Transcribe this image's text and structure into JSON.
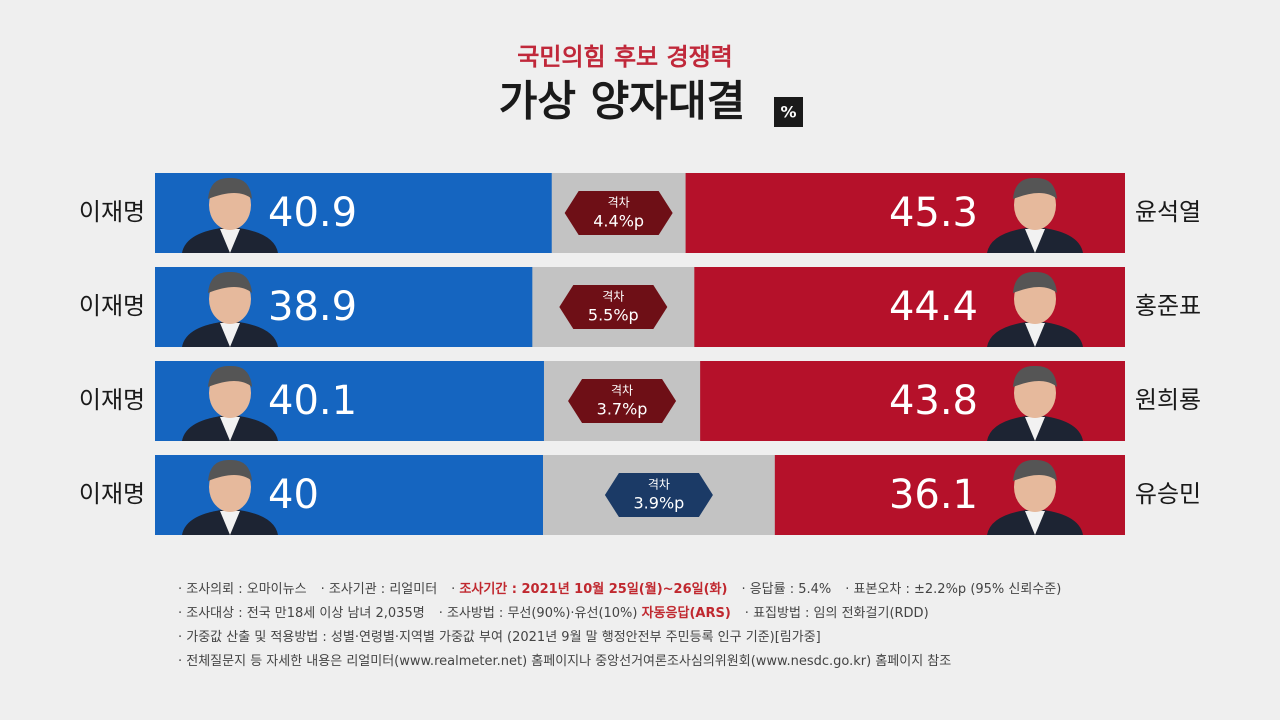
{
  "chart_data": {
    "type": "head-to-head",
    "title": "국민의힘 후보 경쟁력",
    "subtitle": "가상 양자대결",
    "unit": "%",
    "title_color": "#c0283a",
    "left_color": "#1565c0",
    "right_color": "#b5112a",
    "gap_colors": {
      "left": "#1b3a66",
      "right": "#6e0f16"
    },
    "xlim": [
      0,
      100
    ],
    "matchups": [
      {
        "left": "이재명",
        "right": "윤석열",
        "left_value": 40.9,
        "right_value": 45.3,
        "gap_title": "격차",
        "gap": "4.4%p"
      },
      {
        "left": "이재명",
        "right": "홍준표",
        "left_value": 38.9,
        "right_value": 44.4,
        "gap_title": "격차",
        "gap": "5.5%p"
      },
      {
        "left": "이재명",
        "right": "원희룡",
        "left_value": 40.1,
        "right_value": 43.8,
        "gap_title": "격차",
        "gap": "3.7%p"
      },
      {
        "left": "이재명",
        "right": "유승민",
        "left_value": 40.0,
        "right_value": 36.1,
        "gap_title": "격차",
        "gap": "3.9%p"
      }
    ]
  },
  "notes": {
    "emphasis_color": "#c0282f",
    "lines": [
      [
        [
          {
            "text": "조사의뢰 : 오마이뉴스"
          }
        ],
        [
          {
            "text": "조사기관 : 리얼미터"
          }
        ],
        [
          {
            "text": "조사기간 : 2021년 10월 25일(월)~26일(화)",
            "emphasis": true
          }
        ],
        [
          {
            "text": "응답률 : 5.4%"
          }
        ],
        [
          {
            "text": "표본오차 : ±2.2%p (95% 신뢰수준)"
          }
        ]
      ],
      [
        [
          {
            "text": "조사대상 : 전국 만18세 이상 남녀 2,035명"
          }
        ],
        [
          {
            "text": "조사방법 : 무선(90%)·유선(10%) "
          },
          {
            "text": "자동응답(ARS)",
            "emphasis": true
          }
        ],
        [
          {
            "text": "표집방법 : 임의 전화걸기(RDD)"
          }
        ]
      ],
      [
        [
          {
            "text": "가중값 산출 및 적용방법 : 성별·연령별·지역별 가중값 부여 (2021년 9월 말 행정안전부 주민등록 인구 기준)[림가중]"
          }
        ]
      ],
      [
        [
          {
            "text": "전체질문지 등 자세한 내용은 리얼미터(www.realmeter.net) 홈페이지나 중앙선거여론조사심의위원회(www.nesdc.go.kr) 홈페이지 참조"
          }
        ]
      ]
    ]
  }
}
